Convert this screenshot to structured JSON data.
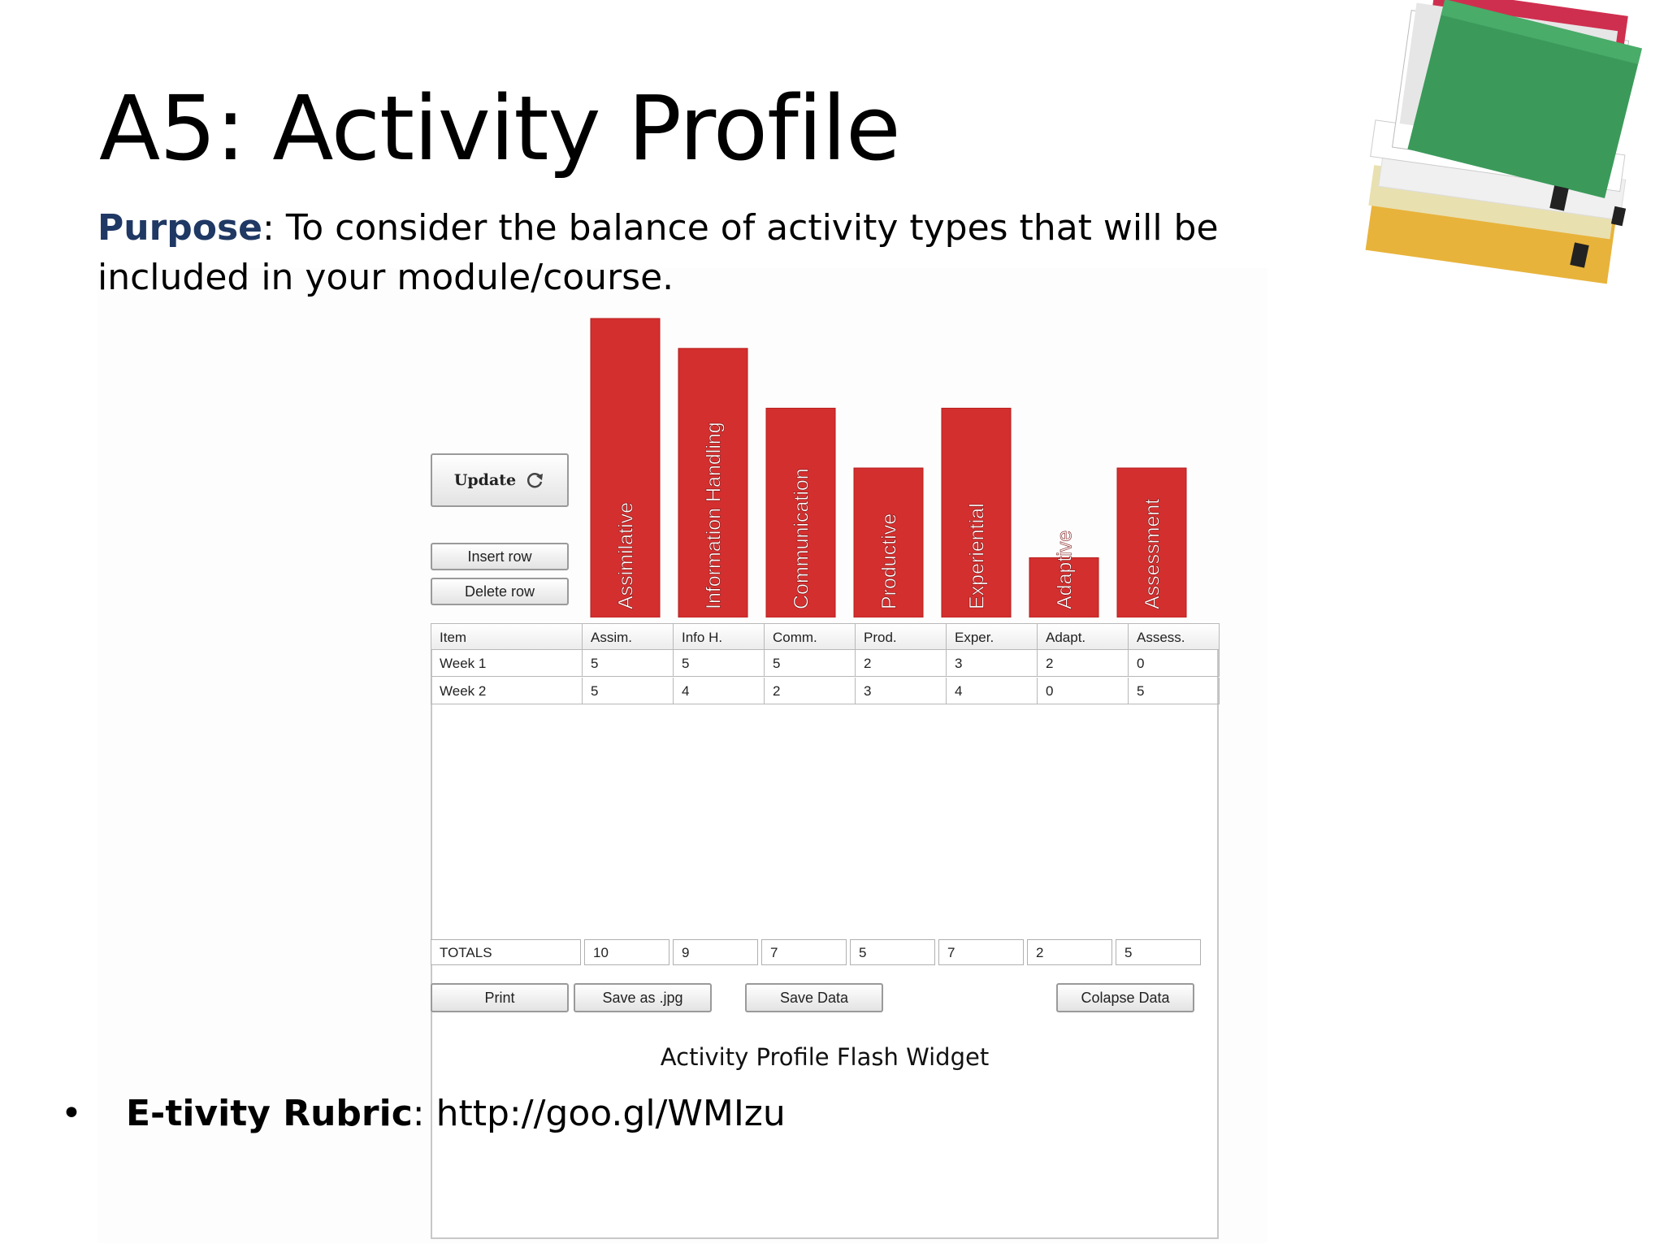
{
  "slide": {
    "title": "A5: Activity Profile",
    "purpose_label": "Purpose",
    "purpose_text": ": To consider the balance of activity types that will be included in your module/course.",
    "caption": "Activity Profile Flash Widget",
    "bullet_symbol": "•",
    "bullet_label": "E-tivity Rubric",
    "bullet_text": ": http://goo.gl/WMIzu"
  },
  "widget": {
    "update_label": "Update",
    "insert_row_label": "Insert row",
    "delete_row_label": "Delete row",
    "print_label": "Print",
    "save_jpg_label": "Save as .jpg",
    "save_data_label": "Save Data",
    "collapse_label": "Colapse Data",
    "totals_label": "TOTALS",
    "columns": [
      "Item",
      "Assim.",
      "Info H.",
      "Comm.",
      "Prod.",
      "Exper.",
      "Adapt.",
      "Assess."
    ],
    "rows": [
      {
        "item": "Week 1",
        "values": [
          "5",
          "5",
          "5",
          "2",
          "3",
          "2",
          "0"
        ]
      },
      {
        "item": "Week 2",
        "values": [
          "5",
          "4",
          "2",
          "3",
          "4",
          "0",
          "5"
        ]
      }
    ],
    "totals": [
      "10",
      "9",
      "7",
      "5",
      "7",
      "2",
      "5"
    ]
  },
  "chart_data": {
    "type": "bar",
    "categories": [
      "Assimilative",
      "Information Handling",
      "Communication",
      "Productive",
      "Experiential",
      "Adaptive",
      "Assessment"
    ],
    "values": [
      10,
      9,
      7,
      5,
      7,
      2,
      5
    ],
    "bar_color": "#d32f2f",
    "ylim": [
      0,
      10
    ]
  },
  "colors": {
    "purpose_label": "#1f3864",
    "bar": "#d32f2f"
  },
  "icons": {
    "update": "refresh-icon",
    "decoration": "folders-stack-image"
  }
}
